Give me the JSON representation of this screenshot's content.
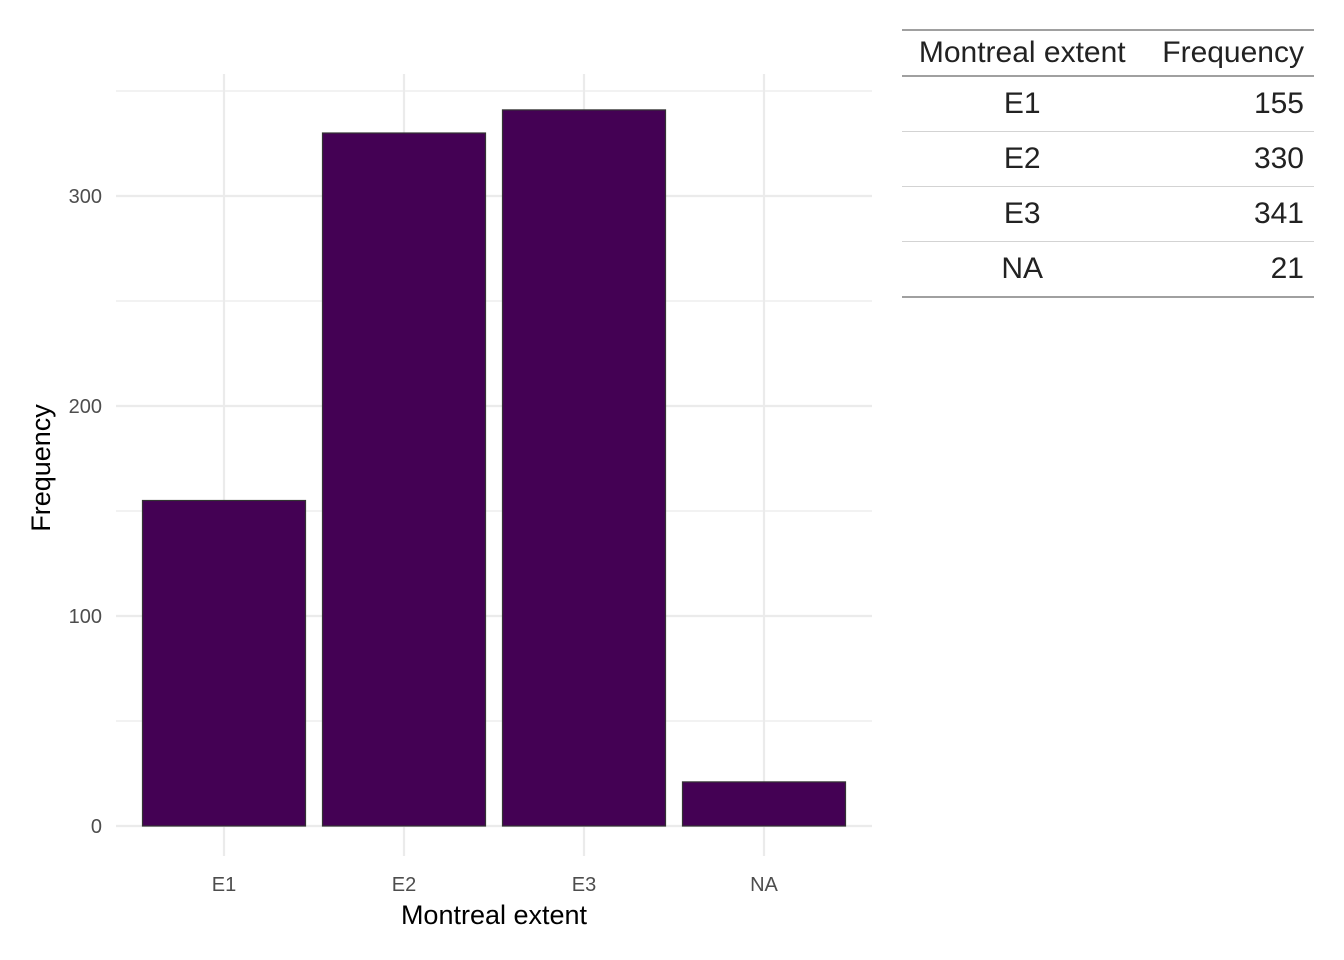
{
  "chart_data": {
    "type": "bar",
    "categories": [
      "E1",
      "E2",
      "E3",
      "NA"
    ],
    "values": [
      155,
      330,
      341,
      21
    ],
    "xlabel": "Montreal extent",
    "ylabel": "Frequency",
    "ylim": [
      0,
      350
    ],
    "yticks": [
      0,
      100,
      200,
      300
    ],
    "grid": true,
    "legend": "none",
    "bar_color": "#440154",
    "bar_outline_color": "#333333"
  },
  "table": {
    "headers": [
      "Montreal extent",
      "Frequency"
    ],
    "rows": [
      [
        "E1",
        "155"
      ],
      [
        "E2",
        "330"
      ],
      [
        "E3",
        "341"
      ],
      [
        "NA",
        "21"
      ]
    ]
  }
}
